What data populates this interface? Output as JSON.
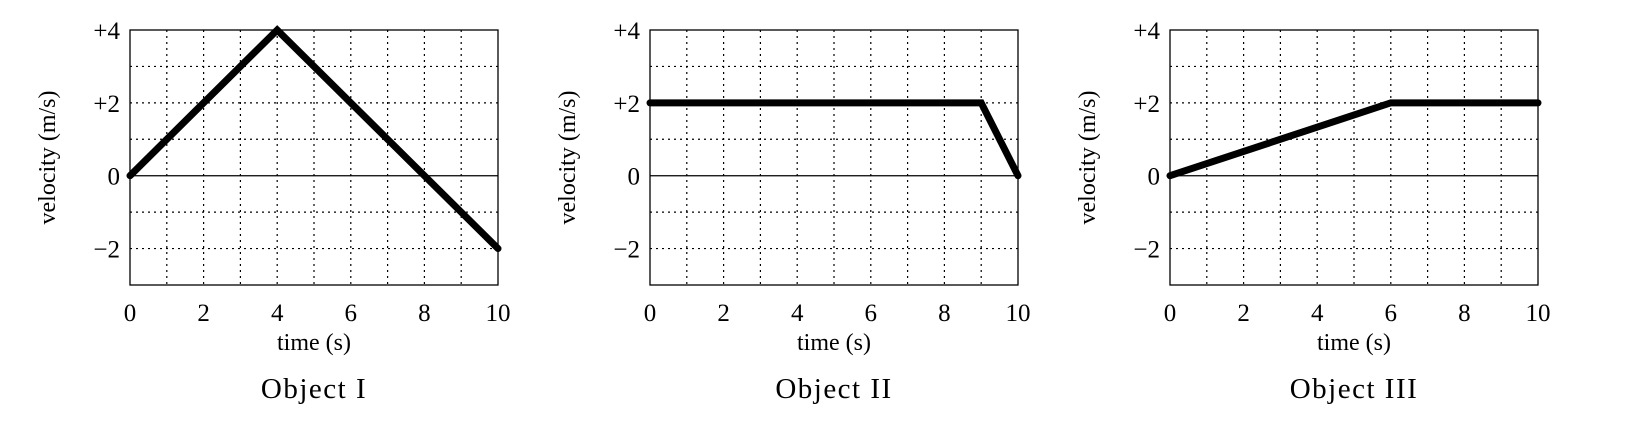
{
  "chart_data": [
    {
      "type": "line",
      "title": "Object I",
      "xlabel": "time (s)",
      "ylabel": "velocity (m/s)",
      "xlim": [
        0,
        10
      ],
      "ylim": [
        -3,
        4
      ],
      "xticks": [
        0,
        2,
        4,
        6,
        8,
        10
      ],
      "xtick_labels": [
        "0",
        "2",
        "4",
        "6",
        "8",
        "10"
      ],
      "yticks": [
        4,
        2,
        0,
        -2
      ],
      "ytick_labels": [
        "+4",
        "+2",
        "0",
        "−2"
      ],
      "grid": true,
      "x": [
        0,
        4,
        10
      ],
      "y": [
        0,
        4,
        -2
      ]
    },
    {
      "type": "line",
      "title": "Object II",
      "xlabel": "time (s)",
      "ylabel": "velocity (m/s)",
      "xlim": [
        0,
        10
      ],
      "ylim": [
        -3,
        4
      ],
      "xticks": [
        0,
        2,
        4,
        6,
        8,
        10
      ],
      "xtick_labels": [
        "0",
        "2",
        "4",
        "6",
        "8",
        "10"
      ],
      "yticks": [
        4,
        2,
        0,
        -2
      ],
      "ytick_labels": [
        "+4",
        "+2",
        "0",
        "−2"
      ],
      "grid": true,
      "x": [
        0,
        9,
        10
      ],
      "y": [
        2,
        2,
        0
      ]
    },
    {
      "type": "line",
      "title": "Object III",
      "xlabel": "time (s)",
      "ylabel": "velocity (m/s)",
      "xlim": [
        0,
        10
      ],
      "ylim": [
        -3,
        4
      ],
      "xticks": [
        0,
        2,
        4,
        6,
        8,
        10
      ],
      "xtick_labels": [
        "0",
        "2",
        "4",
        "6",
        "8",
        "10"
      ],
      "yticks": [
        4,
        2,
        0,
        -2
      ],
      "ytick_labels": [
        "+4",
        "+2",
        "0",
        "−2"
      ],
      "grid": true,
      "x": [
        0,
        6,
        10
      ],
      "y": [
        0,
        2,
        2
      ]
    }
  ]
}
